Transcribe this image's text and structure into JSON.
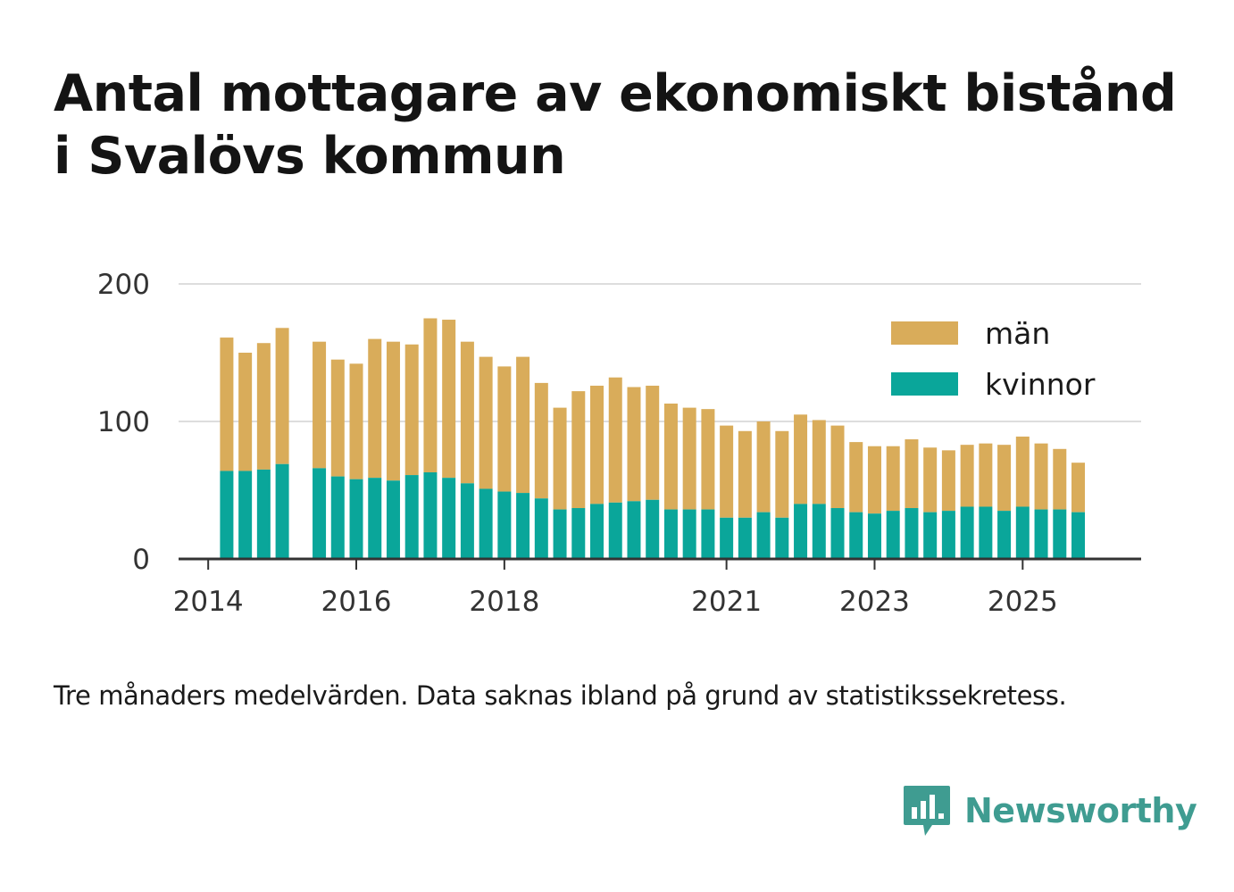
{
  "title": "Antal mottagare av ekonomiskt bistånd i Svalövs kommun",
  "note": "Tre månaders medelvärden. Data saknas ibland på grund av statistikssekretess.",
  "brand": {
    "name": "Newsworthy",
    "icon": "bar-chart-speech-bubble-icon",
    "color": "#3f9c91"
  },
  "colors": {
    "man": "#d9ac5a",
    "kvinnor": "#0aa69a",
    "grid": "#dddddd",
    "axis": "#333333",
    "text": "#333333"
  },
  "chart_data": {
    "type": "bar",
    "stacked": true,
    "title": "Antal mottagare av ekonomiskt bistånd i Svalövs kommun",
    "xlabel": "",
    "ylabel": "",
    "ylim": [
      0,
      200
    ],
    "yticks": [
      0,
      100,
      200
    ],
    "xlim": [
      2013.6,
      2026.6
    ],
    "xticks": [
      2014,
      2016,
      2018,
      2021,
      2023,
      2025
    ],
    "grid": true,
    "legend_position": "top-right",
    "x": [
      2014.25,
      2014.5,
      2014.75,
      2015.0,
      2015.5,
      2015.75,
      2016.0,
      2016.25,
      2016.5,
      2016.75,
      2017.0,
      2017.25,
      2017.5,
      2017.75,
      2018.0,
      2018.25,
      2018.5,
      2018.75,
      2019.0,
      2019.25,
      2019.5,
      2019.75,
      2020.0,
      2020.25,
      2020.5,
      2020.75,
      2021.0,
      2021.25,
      2021.5,
      2021.75,
      2022.0,
      2022.25,
      2022.5,
      2022.75,
      2023.0,
      2023.25,
      2023.5,
      2023.75,
      2024.0,
      2024.25,
      2024.5,
      2024.75,
      2025.0,
      2025.25,
      2025.5,
      2025.75
    ],
    "series": [
      {
        "name": "kvinnor",
        "values": [
          64,
          64,
          65,
          69,
          66,
          60,
          58,
          59,
          57,
          61,
          63,
          59,
          55,
          51,
          49,
          48,
          44,
          36,
          37,
          40,
          41,
          42,
          43,
          36,
          36,
          36,
          30,
          30,
          34,
          30,
          40,
          40,
          37,
          34,
          33,
          35,
          37,
          34,
          35,
          38,
          38,
          35,
          38,
          36,
          36,
          34
        ]
      },
      {
        "name": "män",
        "values": [
          97,
          86,
          92,
          99,
          92,
          85,
          84,
          101,
          101,
          95,
          112,
          115,
          103,
          96,
          91,
          99,
          84,
          74,
          85,
          86,
          91,
          83,
          83,
          77,
          74,
          73,
          67,
          63,
          66,
          63,
          65,
          61,
          60,
          51,
          49,
          47,
          50,
          47,
          44,
          45,
          46,
          48,
          51,
          48,
          44,
          36
        ]
      }
    ]
  }
}
